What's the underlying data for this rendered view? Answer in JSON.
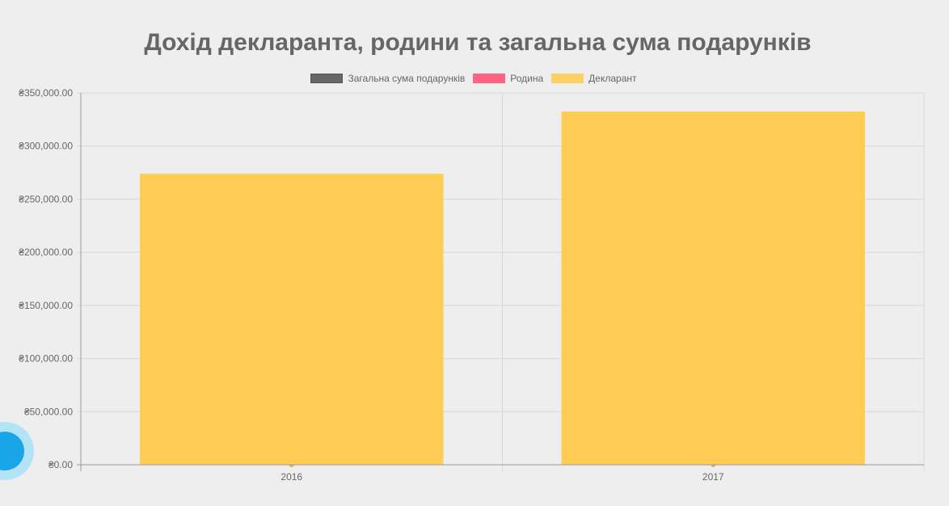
{
  "chart_data": {
    "type": "bar",
    "title": "Дохід декларанта, родини та загальна сума подарунків",
    "categories": [
      "2016",
      "2017"
    ],
    "series": [
      {
        "name": "Загальна сума подарунків",
        "values": [
          0,
          0
        ],
        "color": "#666666"
      },
      {
        "name": "Родина",
        "values": [
          0,
          0
        ],
        "color": "#ff6384"
      },
      {
        "name": "Декларант",
        "values": [
          274000,
          332500
        ],
        "color": "#ffcd56"
      }
    ],
    "ylim": [
      0,
      350000
    ],
    "yticks": [
      0,
      50000,
      100000,
      150000,
      200000,
      250000,
      300000,
      350000
    ],
    "ytick_labels": [
      "₴0.00",
      "₴50,000.00",
      "₴100,000.00",
      "₴150,000.00",
      "₴200,000.00",
      "₴250,000.00",
      "₴300,000.00",
      "₴350,000.00"
    ],
    "grid": true,
    "legend_position": "top"
  }
}
